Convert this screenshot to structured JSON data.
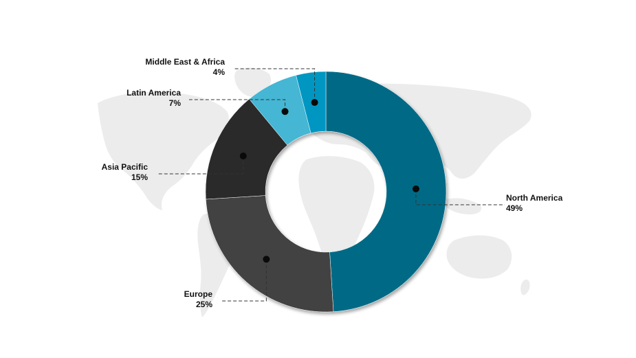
{
  "chart_data": {
    "type": "pie",
    "variant": "donut",
    "title": "",
    "legend": "none",
    "background": "world-map",
    "slices": [
      {
        "label": "North America",
        "value": 49,
        "value_label": "49%",
        "color": "#006a86"
      },
      {
        "label": "Europe",
        "value": 25,
        "value_label": "25%",
        "color": "#434343"
      },
      {
        "label": "Asia Pacific",
        "value": 15,
        "value_label": "15%",
        "color": "#2c2c2a"
      },
      {
        "label": "Latin America",
        "value": 7,
        "value_label": "7%",
        "color": "#45b6d4"
      },
      {
        "label": "Middle East & Africa",
        "value": 4,
        "value_label": "4%",
        "color": "#0596c2"
      }
    ]
  },
  "colors": {
    "map": "#ececec",
    "leader": "#333333",
    "dot": "#0a0a0a"
  }
}
